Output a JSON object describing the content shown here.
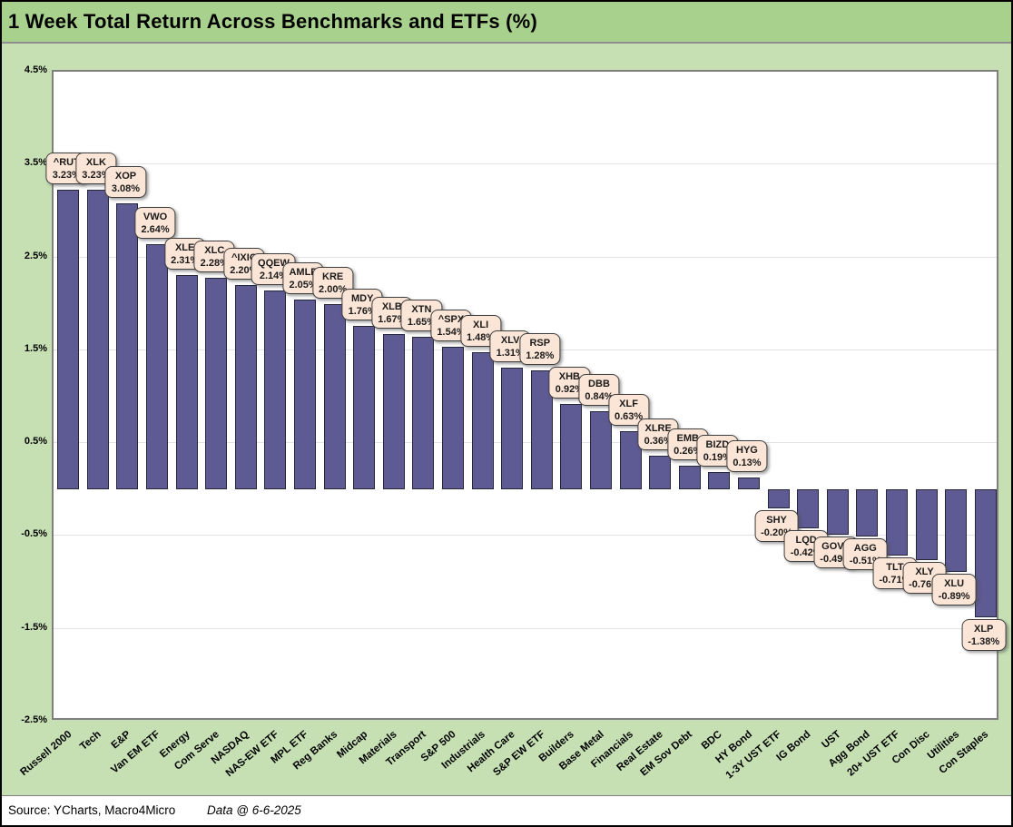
{
  "title": "1 Week Total Return Across Benchmarks and ETFs (%)",
  "footer": {
    "source": "Source: YCharts, Macro4Micro",
    "data_date": "Data @ 6-6-2025"
  },
  "colors": {
    "title_bg": "#a9d18e",
    "chart_bg": "#c6e0b4",
    "plot_bg": "#ffffff",
    "bar_fill": "#5e5a94",
    "bar_border": "#26263a",
    "bubble_bg": "#fbe5d6",
    "bubble_border": "#3f3f3f",
    "gridline": "#e3e3e3"
  },
  "chart_data": {
    "type": "bar",
    "title": "1 Week Total Return Across Benchmarks and ETFs (%)",
    "xlabel": "",
    "ylabel": "",
    "ylim": [
      -2.5,
      4.5
    ],
    "grid": true,
    "legend": false,
    "yticks": [
      {
        "value": 4.5,
        "label": "4.5%"
      },
      {
        "value": 3.5,
        "label": "3.5%"
      },
      {
        "value": 2.5,
        "label": "2.5%"
      },
      {
        "value": 1.5,
        "label": "1.5%"
      },
      {
        "value": 0.5,
        "label": "0.5%"
      },
      {
        "value": -0.5,
        "label": "-0.5%"
      },
      {
        "value": -1.5,
        "label": "-1.5%"
      },
      {
        "value": -2.5,
        "label": "-2.5%"
      }
    ],
    "bars": [
      {
        "category": "Russell 2000",
        "ticker": "^RUT",
        "value": 3.23,
        "label": "3.23%"
      },
      {
        "category": "Tech",
        "ticker": "XLK",
        "value": 3.23,
        "label": "3.23%"
      },
      {
        "category": "E&P",
        "ticker": "XOP",
        "value": 3.08,
        "label": "3.08%"
      },
      {
        "category": "Van EM ETF",
        "ticker": "VWO",
        "value": 2.64,
        "label": "2.64%"
      },
      {
        "category": "Energy",
        "ticker": "XLE",
        "value": 2.31,
        "label": "2.31%"
      },
      {
        "category": "Com Serve",
        "ticker": "XLC",
        "value": 2.28,
        "label": "2.28%"
      },
      {
        "category": "NASDAQ",
        "ticker": "^IXIC",
        "value": 2.2,
        "label": "2.20%"
      },
      {
        "category": "NAS-EW ETF",
        "ticker": "QQEW",
        "value": 2.14,
        "label": "2.14%"
      },
      {
        "category": "MPL ETF",
        "ticker": "AMLP",
        "value": 2.05,
        "label": "2.05%"
      },
      {
        "category": "Reg Banks",
        "ticker": "KRE",
        "value": 2.0,
        "label": "2.00%"
      },
      {
        "category": "Midcap",
        "ticker": "MDY",
        "value": 1.76,
        "label": "1.76%"
      },
      {
        "category": "Materials",
        "ticker": "XLB",
        "value": 1.67,
        "label": "1.67%"
      },
      {
        "category": "Transport",
        "ticker": "XTN",
        "value": 1.65,
        "label": "1.65%"
      },
      {
        "category": "S&P 500",
        "ticker": "^SPX",
        "value": 1.54,
        "label": "1.54%"
      },
      {
        "category": "Industrials",
        "ticker": "XLI",
        "value": 1.48,
        "label": "1.48%"
      },
      {
        "category": "Health Care",
        "ticker": "XLV",
        "value": 1.31,
        "label": "1.31%"
      },
      {
        "category": "S&P EW ETF",
        "ticker": "RSP",
        "value": 1.28,
        "label": "1.28%"
      },
      {
        "category": "Builders",
        "ticker": "XHB",
        "value": 0.92,
        "label": "0.92%"
      },
      {
        "category": "Base Metal",
        "ticker": "DBB",
        "value": 0.84,
        "label": "0.84%"
      },
      {
        "category": "Financials",
        "ticker": "XLF",
        "value": 0.63,
        "label": "0.63%"
      },
      {
        "category": "Real Estate",
        "ticker": "XLRE",
        "value": 0.36,
        "label": "0.36%"
      },
      {
        "category": "EM Sov Debt",
        "ticker": "EMB",
        "value": 0.26,
        "label": "0.26%"
      },
      {
        "category": "BDC",
        "ticker": "BIZD",
        "value": 0.19,
        "label": "0.19%"
      },
      {
        "category": "HY Bond",
        "ticker": "HYG",
        "value": 0.13,
        "label": "0.13%"
      },
      {
        "category": "1-3Y UST ETF",
        "ticker": "SHY",
        "value": -0.2,
        "label": "-0.20%"
      },
      {
        "category": "IG Bond",
        "ticker": "LQD",
        "value": -0.42,
        "label": "-0.42%"
      },
      {
        "category": "UST",
        "ticker": "GOVT",
        "value": -0.49,
        "label": "-0.49%"
      },
      {
        "category": "Agg Bond",
        "ticker": "AGG",
        "value": -0.51,
        "label": "-0.51%"
      },
      {
        "category": "20+ UST ETF",
        "ticker": "TLT",
        "value": -0.71,
        "label": "-0.71%"
      },
      {
        "category": "Con Disc",
        "ticker": "XLY",
        "value": -0.76,
        "label": "-0.76%"
      },
      {
        "category": "Utilities",
        "ticker": "XLU",
        "value": -0.89,
        "label": "-0.89%"
      },
      {
        "category": "Con Staples",
        "ticker": "XLP",
        "value": -1.38,
        "label": "-1.38%"
      }
    ]
  }
}
